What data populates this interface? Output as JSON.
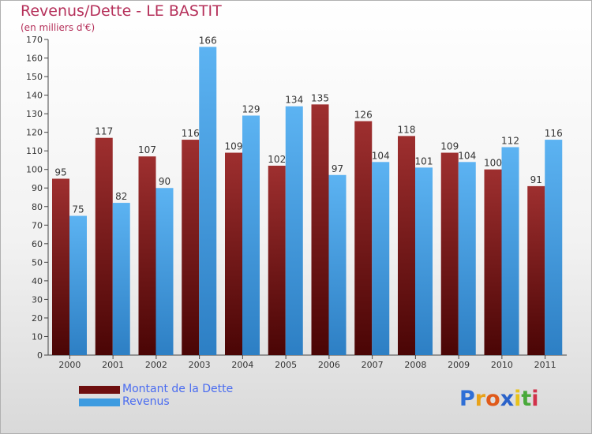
{
  "header": {
    "title": "Revenus/Dette - LE BASTIT",
    "subtitle": "(en milliers d'€)"
  },
  "chart_data": {
    "type": "bar",
    "title": "Revenus/Dette - LE BASTIT",
    "subtitle": "(en milliers d'€)",
    "categories": [
      "2000",
      "2001",
      "2002",
      "2003",
      "2004",
      "2005",
      "2006",
      "2007",
      "2008",
      "2009",
      "2010",
      "2011"
    ],
    "series": [
      {
        "name": "Montant de la Dette",
        "color": "#7a1a1a",
        "values": [
          95,
          117,
          107,
          116,
          109,
          102,
          135,
          126,
          118,
          109,
          100,
          91
        ]
      },
      {
        "name": "Revenus",
        "color": "#4aa3e8",
        "values": [
          75,
          82,
          90,
          166,
          129,
          134,
          97,
          104,
          101,
          104,
          112,
          116
        ]
      }
    ],
    "ylim": [
      0,
      170
    ],
    "ytick_step": 10,
    "grid": false,
    "data_labels": true,
    "legend_position": "bottom-left"
  },
  "legend": {
    "items": [
      {
        "label": "Montant de la Dette",
        "color": "#6e0f0f"
      },
      {
        "label": "Revenus",
        "color": "#3d9be0"
      }
    ]
  },
  "logo": {
    "letters": [
      "P",
      "r",
      "o",
      "x",
      "i",
      "t",
      "i"
    ],
    "colors": [
      "#2f6fd6",
      "#e8a21a",
      "#e05a1a",
      "#2a62c9",
      "#e8c21a",
      "#49a93a",
      "#d1324a"
    ]
  }
}
